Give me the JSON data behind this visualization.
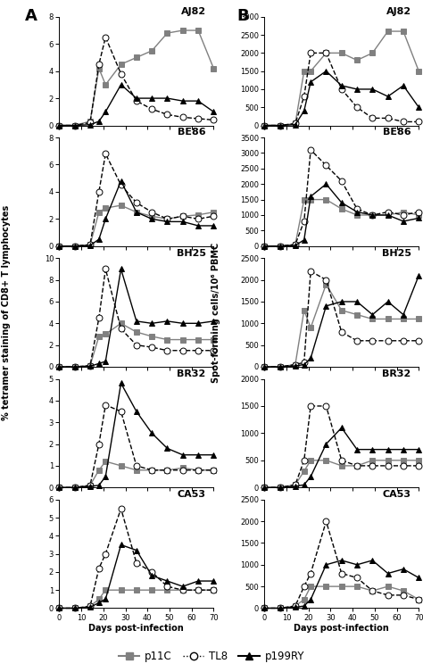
{
  "animals": [
    "AJ82",
    "BE86",
    "BH25",
    "BR32",
    "CA53"
  ],
  "days": [
    0,
    7,
    14,
    18,
    21,
    28,
    35,
    42,
    49,
    56,
    63,
    70
  ],
  "panel_A": {
    "AJ82": {
      "p11C": [
        0.0,
        0.0,
        0.3,
        4.2,
        3.0,
        4.5,
        5.0,
        5.5,
        6.8,
        7.0,
        7.0,
        4.2
      ],
      "TL8": [
        0.0,
        0.0,
        0.2,
        4.5,
        6.5,
        3.8,
        1.8,
        1.2,
        0.8,
        0.6,
        0.5,
        0.4
      ],
      "p199RY": [
        0.0,
        0.0,
        0.05,
        0.3,
        1.0,
        3.0,
        2.0,
        2.0,
        2.0,
        1.8,
        1.8,
        1.0
      ],
      "ylim": [
        0,
        8.0
      ],
      "yticks": [
        0.0,
        2.0,
        4.0,
        6.0,
        8.0
      ]
    },
    "BE86": {
      "p11C": [
        0.0,
        0.0,
        0.1,
        2.5,
        2.8,
        3.0,
        2.5,
        2.2,
        2.0,
        2.2,
        2.3,
        2.5
      ],
      "TL8": [
        0.0,
        0.0,
        0.1,
        4.0,
        6.8,
        4.5,
        3.2,
        2.5,
        2.0,
        2.2,
        2.0,
        2.2
      ],
      "p199RY": [
        0.0,
        0.0,
        0.05,
        0.5,
        2.0,
        4.8,
        2.5,
        2.0,
        1.8,
        1.8,
        1.5,
        1.5
      ],
      "ylim": [
        0,
        8.0
      ],
      "yticks": [
        0.0,
        2.0,
        4.0,
        6.0,
        8.0
      ]
    },
    "BH25": {
      "p11C": [
        0.0,
        0.0,
        0.1,
        2.8,
        3.0,
        4.0,
        3.2,
        2.8,
        2.5,
        2.5,
        2.5,
        2.5
      ],
      "TL8": [
        0.0,
        0.0,
        0.1,
        4.5,
        9.0,
        3.5,
        2.0,
        1.8,
        1.5,
        1.5,
        1.5,
        1.5
      ],
      "p199RY": [
        0.0,
        0.0,
        0.05,
        0.3,
        0.5,
        9.0,
        4.2,
        4.0,
        4.2,
        4.0,
        4.0,
        4.2
      ],
      "ylim": [
        0,
        10.0
      ],
      "yticks": [
        0.0,
        2.0,
        4.0,
        6.0,
        8.0,
        10.0
      ]
    },
    "BR32": {
      "p11C": [
        0.0,
        0.0,
        0.1,
        0.8,
        1.2,
        1.0,
        0.8,
        0.8,
        0.8,
        0.9,
        0.8,
        0.8
      ],
      "TL8": [
        0.0,
        0.0,
        0.1,
        2.0,
        3.8,
        3.5,
        1.0,
        0.8,
        0.8,
        0.8,
        0.8,
        0.8
      ],
      "p199RY": [
        0.0,
        0.0,
        0.05,
        0.1,
        0.5,
        4.8,
        3.5,
        2.5,
        1.8,
        1.5,
        1.5,
        1.5
      ],
      "ylim": [
        0,
        5.0
      ],
      "yticks": [
        0.0,
        1.0,
        2.0,
        3.0,
        4.0,
        5.0
      ]
    },
    "CA53": {
      "p11C": [
        0.0,
        0.0,
        0.1,
        0.5,
        1.0,
        1.0,
        1.0,
        1.0,
        1.0,
        1.0,
        1.0,
        1.0
      ],
      "TL8": [
        0.0,
        0.0,
        0.1,
        2.2,
        3.0,
        5.5,
        2.5,
        2.0,
        1.2,
        1.0,
        1.0,
        1.0
      ],
      "p199RY": [
        0.0,
        0.0,
        0.05,
        0.3,
        0.5,
        3.5,
        3.2,
        1.8,
        1.5,
        1.2,
        1.5,
        1.5
      ],
      "ylim": [
        0,
        6
      ],
      "yticks": [
        0,
        1,
        2,
        3,
        4,
        5,
        6
      ]
    }
  },
  "panel_B": {
    "AJ82": {
      "p11C": [
        0,
        0,
        50,
        1500,
        1500,
        2000,
        2000,
        1800,
        2000,
        2600,
        2600,
        1500
      ],
      "TL8": [
        0,
        0,
        50,
        800,
        2000,
        2000,
        1000,
        500,
        200,
        200,
        100,
        100
      ],
      "p199RY": [
        0,
        0,
        20,
        400,
        1200,
        1500,
        1100,
        1000,
        1000,
        800,
        1100,
        500
      ],
      "ylim": [
        0,
        3000
      ],
      "yticks": [
        0,
        500,
        1000,
        1500,
        2000,
        2500,
        3000
      ]
    },
    "BE86": {
      "p11C": [
        0,
        0,
        50,
        1500,
        1500,
        1500,
        1200,
        1000,
        1000,
        1000,
        1100,
        1000
      ],
      "TL8": [
        0,
        0,
        50,
        800,
        3100,
        2600,
        2100,
        1200,
        1000,
        1100,
        1000,
        1100
      ],
      "p199RY": [
        0,
        0,
        20,
        200,
        1600,
        2000,
        1400,
        1100,
        1000,
        1000,
        800,
        900
      ],
      "ylim": [
        0,
        3500
      ],
      "yticks": [
        0,
        500,
        1000,
        1500,
        2000,
        2500,
        3000,
        3500
      ]
    },
    "BH25": {
      "p11C": [
        0,
        0,
        50,
        1300,
        900,
        1900,
        1300,
        1200,
        1100,
        1100,
        1100,
        1100
      ],
      "TL8": [
        0,
        0,
        50,
        100,
        2200,
        2000,
        800,
        600,
        600,
        600,
        600,
        600
      ],
      "p199RY": [
        0,
        0,
        20,
        50,
        200,
        1400,
        1500,
        1500,
        1200,
        1500,
        1200,
        2100
      ],
      "ylim": [
        0,
        2500
      ],
      "yticks": [
        0,
        500,
        1000,
        1500,
        2000,
        2500
      ]
    },
    "BR32": {
      "p11C": [
        0,
        0,
        50,
        300,
        500,
        500,
        400,
        400,
        500,
        500,
        500,
        500
      ],
      "TL8": [
        0,
        0,
        50,
        500,
        1500,
        1500,
        500,
        400,
        400,
        400,
        400,
        400
      ],
      "p199RY": [
        0,
        0,
        20,
        50,
        200,
        800,
        1100,
        700,
        700,
        700,
        700,
        700
      ],
      "ylim": [
        0,
        2000
      ],
      "yticks": [
        0,
        500,
        1000,
        1500,
        2000
      ]
    },
    "CA53": {
      "p11C": [
        0,
        0,
        50,
        200,
        500,
        500,
        500,
        500,
        400,
        500,
        400,
        200
      ],
      "TL8": [
        0,
        0,
        50,
        500,
        800,
        2000,
        800,
        700,
        400,
        300,
        300,
        200
      ],
      "p199RY": [
        0,
        0,
        20,
        50,
        200,
        1000,
        1100,
        1000,
        1100,
        800,
        900,
        700
      ],
      "ylim": [
        0,
        2500
      ],
      "yticks": [
        0,
        500,
        1000,
        1500,
        2000,
        2500
      ]
    }
  },
  "line_styles": {
    "p11C": {
      "color": "#808080",
      "marker": "s",
      "linestyle": "-",
      "markersize": 4
    },
    "TL8": {
      "color": "#000000",
      "marker": "o",
      "linestyle": "--",
      "markersize": 5
    },
    "p199RY": {
      "color": "#000000",
      "marker": "^",
      "linestyle": "-",
      "markersize": 5
    }
  },
  "ylabel_A": "% tetramer staining of CD8+ T lymphocytes",
  "ylabel_B": "Spot-forming cells/10⁶ PBMC",
  "xlabel": "Days post-infection",
  "xticks": [
    0,
    10,
    20,
    30,
    40,
    50,
    60,
    70
  ]
}
